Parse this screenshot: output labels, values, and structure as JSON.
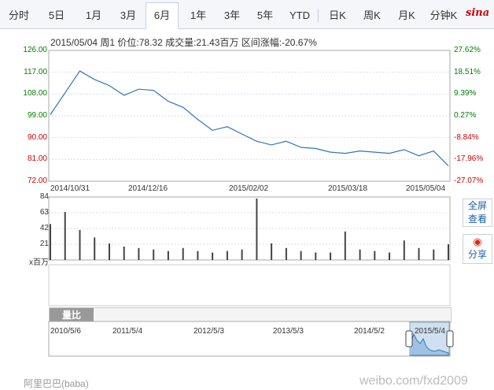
{
  "tabs": [
    {
      "label": "分时",
      "active": false
    },
    {
      "label": "5日",
      "active": false
    },
    {
      "label": "1月",
      "active": false
    },
    {
      "label": "3月",
      "active": false
    },
    {
      "label": "6月",
      "active": true
    },
    {
      "label": "1年",
      "active": false
    },
    {
      "label": "3年",
      "active": false
    },
    {
      "label": "5年",
      "active": false
    },
    {
      "label": "YTD",
      "active": false
    },
    {
      "label": "日K",
      "active": false
    },
    {
      "label": "周K",
      "active": false
    },
    {
      "label": "月K",
      "active": false
    },
    {
      "label": "分钟K",
      "active": false
    }
  ],
  "logo_text": "sina",
  "info_line": "2015/05/04 周1 价位:78.32 成交量:21.43百万 区间涨幅:-20.67%",
  "price_axis_left": [
    "126.00",
    "117.00",
    "108.00",
    "99.00",
    "90.00",
    "81.00",
    "72.00"
  ],
  "price_axis_right": [
    "27.62%",
    "18.51%",
    "9.39%",
    "0.27%",
    "-8.84%",
    "-17.96%",
    "-27.07%"
  ],
  "colors": {
    "up": "#008000",
    "down": "#cc0000",
    "line": "#2f74c0",
    "bars": "#444444"
  },
  "date_labels": [
    "2014/10/31",
    "2014/12/16",
    "2015/02/02",
    "2015/03/18",
    "2015/05/04"
  ],
  "volume_axis": [
    "84",
    "63",
    "42",
    "21"
  ],
  "volume_unit": "x百万",
  "side_buttons": {
    "fullscreen": "全屏\n查看",
    "share": "分享"
  },
  "navigator": {
    "tab_label": "量比",
    "dates": [
      "2010/5/6",
      "2011/5/4",
      "2012/5/3",
      "2013/5/3",
      "2014/5/2",
      "2015/5/4"
    ]
  },
  "footer_text": "阿里巴巴(baba)",
  "watermark": "weibo.com/fxd2009",
  "chart_data": {
    "type": "line",
    "title": "",
    "ylim": [
      72,
      126
    ],
    "x": [
      "2014/10/31",
      "2014/11/07",
      "2014/11/14",
      "2014/11/21",
      "2014/11/28",
      "2014/12/05",
      "2014/12/12",
      "2014/12/16",
      "2014/12/23",
      "2014/12/30",
      "2015/01/06",
      "2015/01/13",
      "2015/01/20",
      "2015/01/27",
      "2015/02/02",
      "2015/02/09",
      "2015/02/16",
      "2015/02/23",
      "2015/03/02",
      "2015/03/09",
      "2015/03/18",
      "2015/03/25",
      "2015/04/01",
      "2015/04/08",
      "2015/04/15",
      "2015/04/22",
      "2015/04/29",
      "2015/05/04"
    ],
    "series": [
      {
        "values": [
          99.5,
          108.5,
          117.5,
          114.0,
          111.5,
          107.5,
          110.0,
          109.5,
          105.0,
          102.5,
          97.5,
          93.0,
          94.5,
          91.5,
          88.5,
          87.0,
          88.5,
          86.0,
          85.5,
          84.0,
          83.5,
          84.5,
          84.0,
          83.5,
          85.0,
          82.5,
          84.5,
          78.3
        ]
      }
    ],
    "volume": [
      48,
      64,
      40,
      30,
      22,
      18,
      16,
      14,
      12,
      16,
      12,
      10,
      12,
      14,
      82,
      22,
      16,
      12,
      10,
      10,
      38,
      14,
      12,
      10,
      26,
      16,
      14,
      21
    ]
  }
}
